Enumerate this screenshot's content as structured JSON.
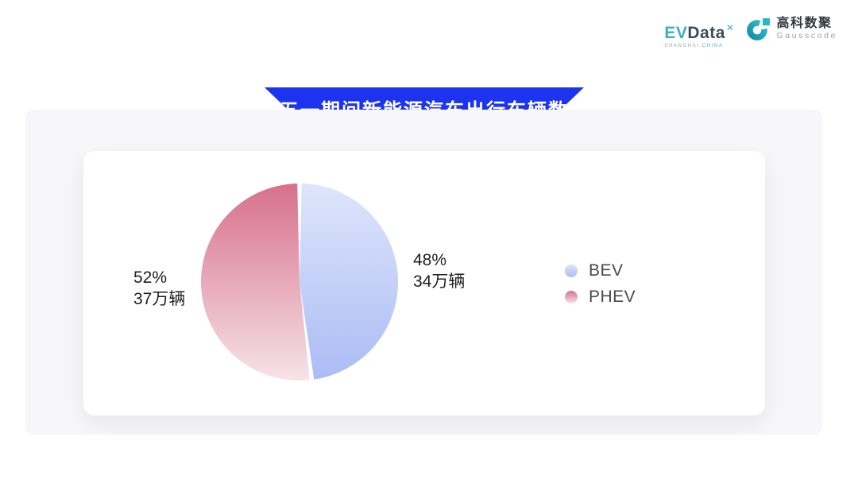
{
  "header": {
    "evdata_logo": {
      "text_ev": "EV",
      "text_data": "Data",
      "sup_mark": "✕",
      "subtitle_left": "SHANGHAI",
      "subtitle_right": "CHINA",
      "teal": "#3FAEC4",
      "dark": "#3E4C59"
    },
    "gausscode_logo": {
      "cn": "高科数聚",
      "en": "Gausscode",
      "teal_dark": "#128FA6",
      "teal_light": "#35BCCB"
    }
  },
  "banner": {
    "title": "五一期间新能源汽车出行车辆数",
    "background": "#1C33F0",
    "text_color": "#FFFFFF"
  },
  "chart_data": {
    "type": "pie",
    "title": "五一期间新能源汽车出行车辆数",
    "unit": "万辆",
    "start_angle_deg": 0,
    "gap_deg": 2.6,
    "legend_position": "right",
    "slices": [
      {
        "name": "BEV",
        "percent": 48,
        "value": 34,
        "percent_label": "48%",
        "value_label": "34万辆",
        "label_side": "right",
        "gradient": [
          "#DEE5FB",
          "#ABBCF5"
        ]
      },
      {
        "name": "PHEV",
        "percent": 52,
        "value": 37,
        "percent_label": "52%",
        "value_label": "37万辆",
        "label_side": "left",
        "gradient": [
          "#D7708C",
          "#F7E3E8"
        ]
      }
    ]
  }
}
